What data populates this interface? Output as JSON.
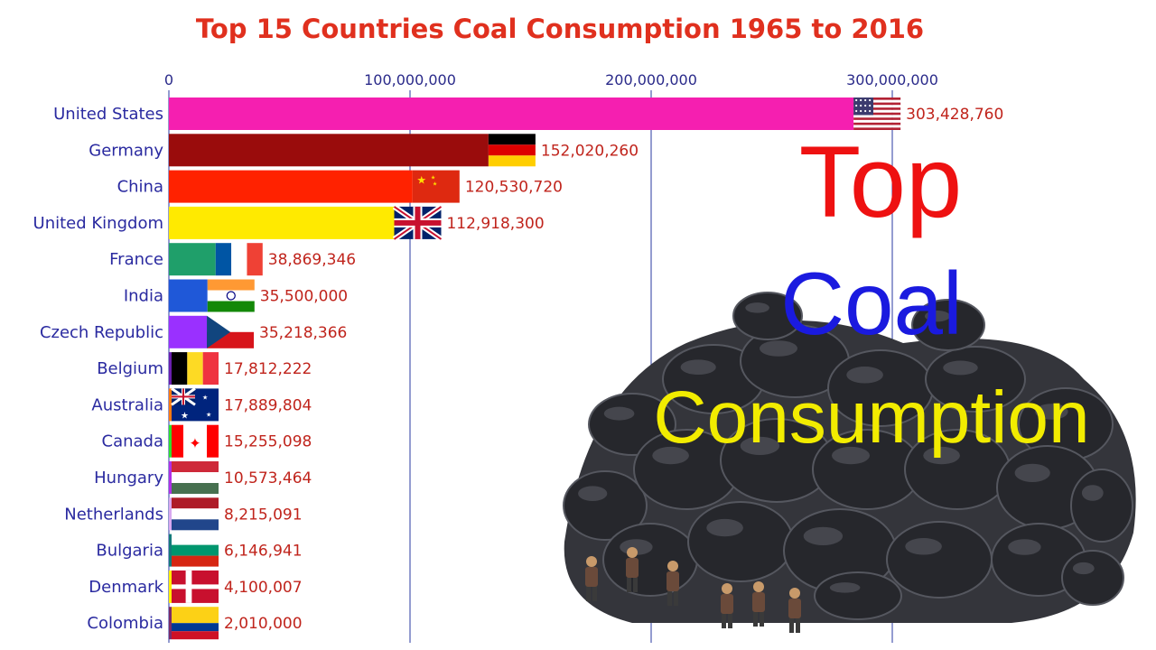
{
  "chart_data": {
    "type": "bar",
    "title": "Top 15 Countries Coal Consumption 1965 to 2016",
    "orientation": "horizontal",
    "xlim": [
      0,
      300000000
    ],
    "x_ticks": [
      0,
      100000000,
      200000000,
      300000000
    ],
    "x_tick_labels": [
      "0",
      "100,000,000",
      "200,000,000",
      "300,000,000"
    ],
    "grid": true,
    "categories": [
      "United States",
      "Germany",
      "China",
      "United Kingdom",
      "France",
      "India",
      "Czech Republic",
      "Belgium",
      "Australia",
      "Canada",
      "Hungary",
      "Netherlands",
      "Bulgaria",
      "Denmark",
      "Colombia"
    ],
    "values": [
      303428760,
      152020260,
      120530720,
      112918300,
      38869346,
      35500000,
      35218366,
      17812222,
      17889804,
      15255098,
      10573464,
      8215091,
      6146941,
      4100007,
      2010000
    ],
    "value_labels": [
      "303,428,760",
      "152,020,260",
      "120,530,720",
      "112,918,300",
      "38,869,346",
      "35,500,000",
      "35,218,366",
      "17,812,222",
      "17,889,804",
      "15,255,098",
      "10,573,464",
      "8,215,091",
      "6,146,941",
      "4,100,007",
      "2,010,000"
    ],
    "bar_colors": [
      "#f51fb0",
      "#9a0c0c",
      "#ff2200",
      "#ffea00",
      "#1f9f6a",
      "#1f58d8",
      "#9a30ff",
      "#6a1fb0",
      "#ff7a10",
      "#2ee02e",
      "#b030e8",
      "#d8a8f0",
      "#147a7a",
      "#ffee00",
      "#7a2a6a"
    ],
    "flags": [
      "flag-us",
      "flag-de",
      "flag-cn",
      "flag-uk",
      "flag-fr",
      "flag-in",
      "flag-cz",
      "flag-be",
      "flag-au",
      "flag-ca",
      "flag-hu",
      "flag-nl",
      "flag-bg",
      "flag-dk",
      "flag-co"
    ]
  },
  "overlay": {
    "line1": "Top",
    "line2": "Coal",
    "line3": "Consumption",
    "colors": {
      "line1": "#ee1111",
      "line2": "#1a1adf",
      "line3": "#f2ec00"
    }
  },
  "colors": {
    "title": "#e0301e",
    "grid": "#2a3aa0",
    "coal": "#2a2b30"
  }
}
